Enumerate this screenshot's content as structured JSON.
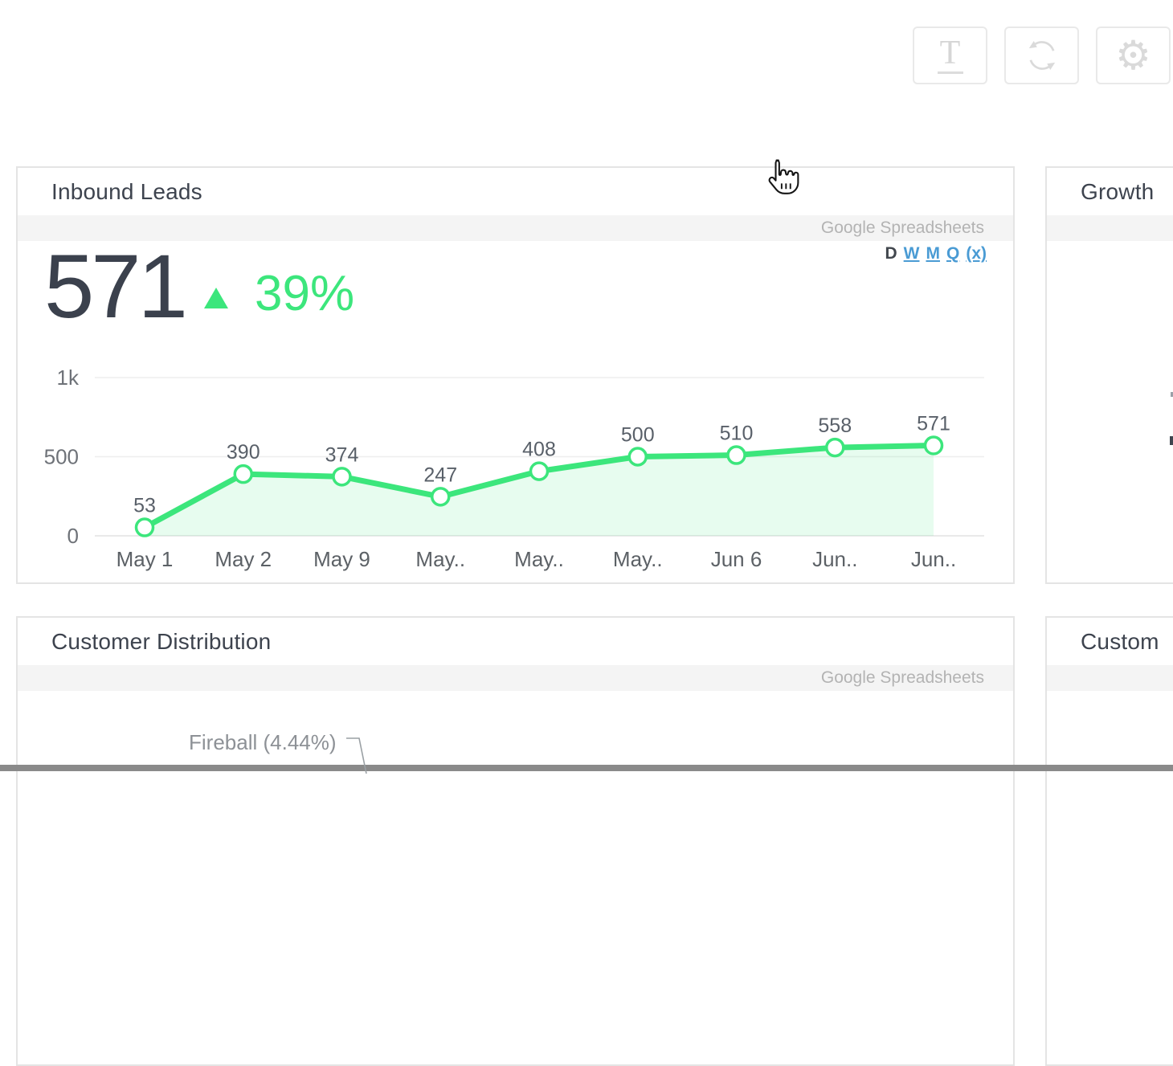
{
  "toolbar": {
    "buttons": [
      {
        "label": "T",
        "name": "text-widget"
      },
      {
        "name": "refresh"
      },
      {
        "name": "settings"
      }
    ]
  },
  "icons": {
    "gear": "⚙"
  },
  "inbound_leads": {
    "title": "Inbound Leads",
    "source": "Google Spreadsheets",
    "range": [
      "D",
      "W",
      "M",
      "Q",
      "(x)"
    ],
    "range_selected": "D",
    "metric_value": "571",
    "metric_delta": "39%",
    "delta_direction": "up"
  },
  "growth": {
    "title": "Growth"
  },
  "customer_distribution": {
    "title": "Customer Distribution",
    "source": "Google Spreadsheets",
    "slice_label": "Fireball (4.44%)"
  },
  "custom_card": {
    "title": "Custom"
  },
  "chart_data": {
    "type": "line",
    "title": "Inbound Leads",
    "categories": [
      "May 1",
      "May 2",
      "May 9",
      "May..",
      "May..",
      "May..",
      "Jun 6",
      "Jun..",
      "Jun.."
    ],
    "values": [
      53,
      390,
      374,
      247,
      408,
      500,
      510,
      558,
      571
    ],
    "data_labels": [
      "53",
      "390",
      "374",
      "247",
      "408",
      "500",
      "510",
      "558",
      "571"
    ],
    "y_ticks": [
      {
        "label": "1k",
        "value": 1000
      },
      {
        "label": "500",
        "value": 500
      },
      {
        "label": "0",
        "value": 0
      }
    ],
    "ylim": [
      0,
      1000
    ],
    "grid": true,
    "legend": false,
    "area": true,
    "line_color": "#3ce67c",
    "area_opacity": 0.12,
    "marker_fill": "#ffffff",
    "label_color": "#596069",
    "axis_color": "#6e7278"
  },
  "colors": {
    "accent_green": "#3ce67c",
    "link_blue": "#4a9bd4",
    "title_text": "#3d434e",
    "muted_text": "#b3b3b3",
    "band_bg": "#f4f4f4",
    "card_border": "#e4e4e4",
    "bottom_bar": "#8a8a8a"
  }
}
